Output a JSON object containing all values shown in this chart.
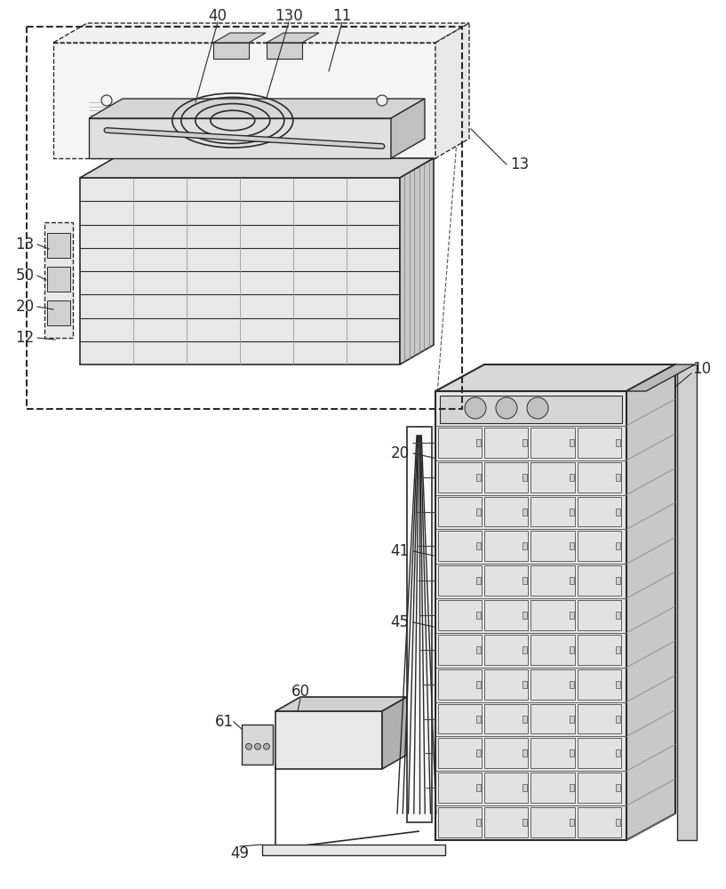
{
  "bg_color": "#ffffff",
  "line_color": "#2a2a2a",
  "gray_light": "#e8e8e8",
  "gray_mid": "#d0d0d0",
  "gray_dark": "#b0b0b0",
  "figsize": [
    8.17,
    10.0
  ],
  "dpi": 100
}
